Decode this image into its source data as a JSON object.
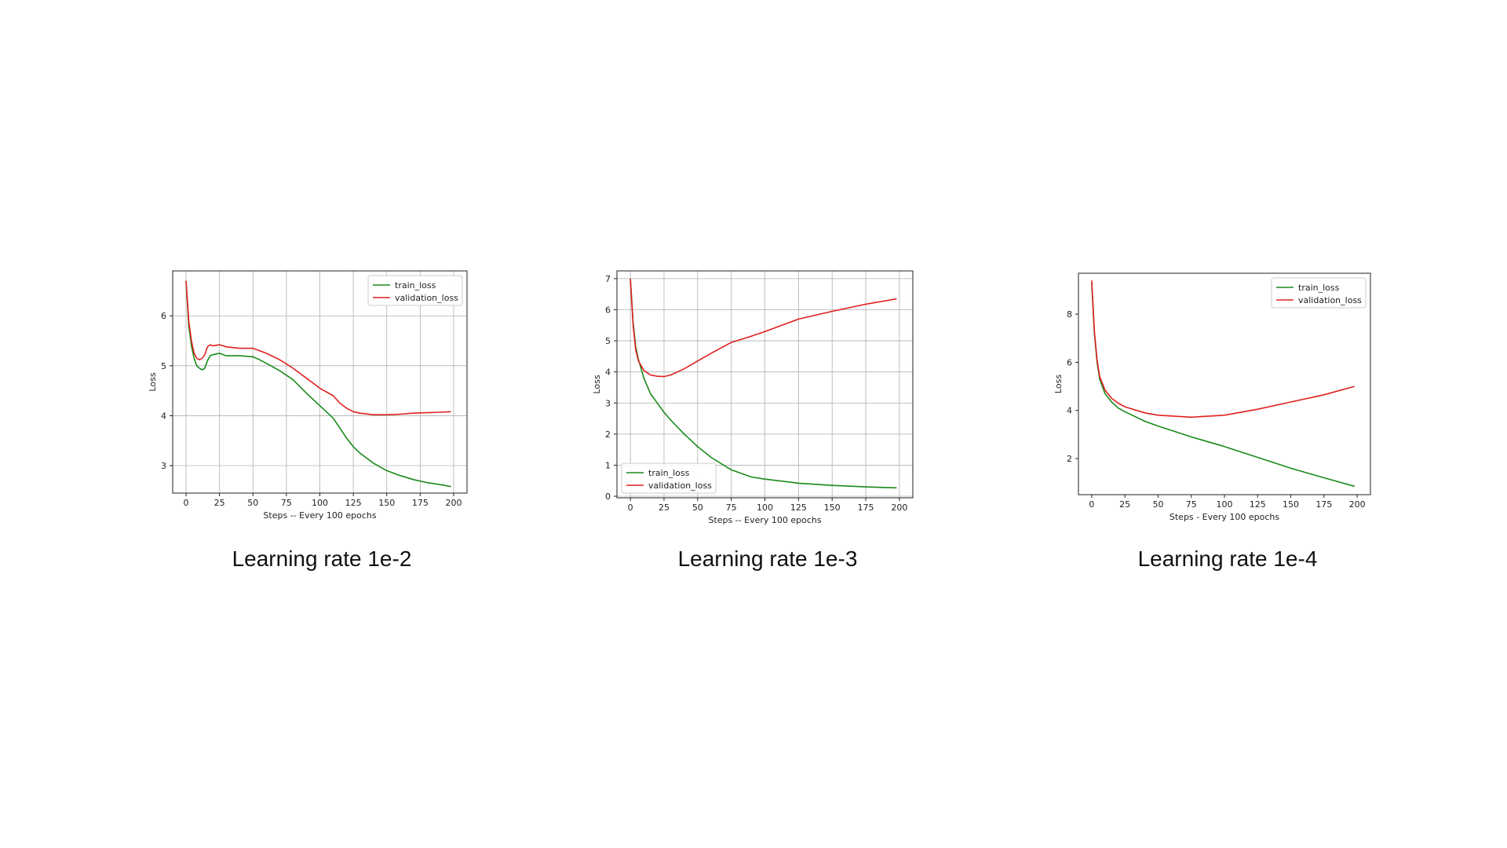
{
  "colors": {
    "train": "#1a8a1a",
    "validation": "#e02020"
  },
  "chart_data": [
    {
      "type": "line",
      "caption": "Learning rate 1e-2",
      "xlabel": "Steps -- Every 100 epochs",
      "ylabel": "Loss",
      "xlim": [
        -10,
        210
      ],
      "ylim": [
        2.45,
        6.9
      ],
      "xticks": [
        0,
        25,
        50,
        75,
        100,
        125,
        150,
        175,
        200
      ],
      "yticks": [
        3,
        4,
        5,
        6
      ],
      "grid": true,
      "legend_position": "top-right",
      "series": [
        {
          "name": "train_loss",
          "color": "#1a8a1a",
          "x": [
            0,
            2,
            4,
            6,
            8,
            10,
            12,
            14,
            16,
            18,
            20,
            25,
            30,
            40,
            50,
            55,
            60,
            70,
            80,
            90,
            100,
            110,
            115,
            120,
            125,
            130,
            140,
            150,
            160,
            170,
            180,
            190,
            198
          ],
          "y": [
            6.7,
            5.8,
            5.4,
            5.15,
            5.0,
            4.95,
            4.92,
            4.95,
            5.1,
            5.2,
            5.22,
            5.25,
            5.2,
            5.2,
            5.18,
            5.12,
            5.05,
            4.9,
            4.72,
            4.45,
            4.2,
            3.95,
            3.75,
            3.55,
            3.38,
            3.25,
            3.05,
            2.9,
            2.8,
            2.72,
            2.66,
            2.62,
            2.58
          ]
        },
        {
          "name": "validation_loss",
          "color": "#e02020",
          "x": [
            0,
            2,
            4,
            6,
            8,
            10,
            12,
            14,
            16,
            18,
            20,
            25,
            30,
            40,
            50,
            55,
            60,
            70,
            80,
            90,
            100,
            110,
            115,
            120,
            125,
            130,
            140,
            150,
            160,
            170,
            180,
            190,
            198
          ],
          "y": [
            6.7,
            5.9,
            5.5,
            5.25,
            5.15,
            5.12,
            5.15,
            5.22,
            5.38,
            5.42,
            5.4,
            5.42,
            5.38,
            5.35,
            5.35,
            5.3,
            5.25,
            5.12,
            4.95,
            4.75,
            4.55,
            4.4,
            4.25,
            4.15,
            4.08,
            4.05,
            4.02,
            4.02,
            4.03,
            4.05,
            4.06,
            4.07,
            4.08
          ]
        }
      ]
    },
    {
      "type": "line",
      "caption": "Learning rate 1e-3",
      "xlabel": "Steps -- Every 100 epochs",
      "ylabel": "Loss",
      "xlim": [
        -10,
        210
      ],
      "ylim": [
        -0.05,
        7.25
      ],
      "xticks": [
        0,
        25,
        50,
        75,
        100,
        125,
        150,
        175,
        200
      ],
      "yticks": [
        0,
        1,
        2,
        3,
        4,
        5,
        6,
        7
      ],
      "grid": true,
      "legend_position": "bottom-left",
      "series": [
        {
          "name": "train_loss",
          "color": "#1a8a1a",
          "x": [
            0,
            2,
            4,
            6,
            10,
            15,
            20,
            25,
            30,
            40,
            50,
            60,
            75,
            90,
            100,
            125,
            150,
            175,
            198
          ],
          "y": [
            7.0,
            5.6,
            4.8,
            4.4,
            3.8,
            3.3,
            3.0,
            2.7,
            2.45,
            2.0,
            1.6,
            1.25,
            0.85,
            0.62,
            0.55,
            0.42,
            0.35,
            0.3,
            0.27
          ]
        },
        {
          "name": "validation_loss",
          "color": "#e02020",
          "x": [
            0,
            2,
            4,
            6,
            10,
            15,
            20,
            25,
            30,
            40,
            50,
            60,
            75,
            90,
            100,
            125,
            150,
            175,
            198
          ],
          "y": [
            7.0,
            5.5,
            4.7,
            4.35,
            4.05,
            3.9,
            3.86,
            3.85,
            3.9,
            4.1,
            4.35,
            4.6,
            4.95,
            5.15,
            5.3,
            5.7,
            5.95,
            6.18,
            6.35
          ]
        }
      ]
    },
    {
      "type": "line",
      "caption": "Learning rate 1e-4",
      "xlabel": "Steps - Every 100 epochs",
      "ylabel": "Loss",
      "xlim": [
        -10,
        210
      ],
      "ylim": [
        0.5,
        9.7
      ],
      "xticks": [
        0,
        25,
        50,
        75,
        100,
        125,
        150,
        175,
        200
      ],
      "yticks": [
        2,
        4,
        6,
        8
      ],
      "grid": false,
      "legend_position": "top-right",
      "series": [
        {
          "name": "train_loss",
          "color": "#1a8a1a",
          "x": [
            0,
            2,
            4,
            6,
            10,
            15,
            20,
            25,
            40,
            50,
            75,
            100,
            125,
            150,
            175,
            198
          ],
          "y": [
            9.3,
            7.2,
            6.0,
            5.3,
            4.7,
            4.35,
            4.1,
            3.95,
            3.55,
            3.35,
            2.9,
            2.5,
            2.05,
            1.6,
            1.2,
            0.85
          ]
        },
        {
          "name": "validation_loss",
          "color": "#e02020",
          "x": [
            0,
            2,
            4,
            6,
            10,
            15,
            20,
            25,
            40,
            50,
            75,
            100,
            125,
            150,
            175,
            198
          ],
          "y": [
            9.4,
            7.3,
            6.1,
            5.4,
            4.85,
            4.5,
            4.3,
            4.15,
            3.9,
            3.8,
            3.72,
            3.8,
            4.05,
            4.35,
            4.65,
            5.0
          ]
        }
      ]
    }
  ]
}
